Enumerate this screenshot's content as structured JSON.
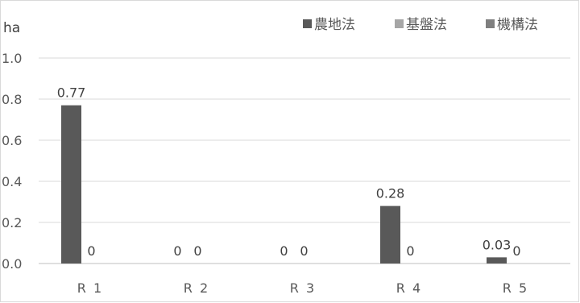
{
  "chart_data": {
    "type": "bar",
    "ylabel": "ha",
    "ylim": [
      0,
      1.0
    ],
    "yticks": [
      "0.0",
      "0.2",
      "0.4",
      "0.6",
      "0.8",
      "1.0"
    ],
    "categories": [
      "R 1",
      "R 2",
      "R 3",
      "R 4",
      "R 5"
    ],
    "series": [
      {
        "name": "農地法",
        "color": "#595959",
        "values": [
          0.77,
          0,
          0,
          0.28,
          0.03
        ],
        "labels": [
          "0.77",
          "0",
          "0",
          "0.28",
          "0.03"
        ]
      },
      {
        "name": "基盤法",
        "color": "#a6a6a6",
        "values": [
          0,
          0,
          0,
          0,
          0
        ],
        "labels": [
          "0",
          "0",
          "0",
          "0",
          "0"
        ]
      },
      {
        "name": "機構法",
        "color": "#7f7f7f",
        "values": [
          null,
          null,
          null,
          null,
          null
        ],
        "labels": [
          "",
          "",
          "",
          "",
          ""
        ]
      }
    ],
    "legend_position": "top-right",
    "grid": true
  }
}
